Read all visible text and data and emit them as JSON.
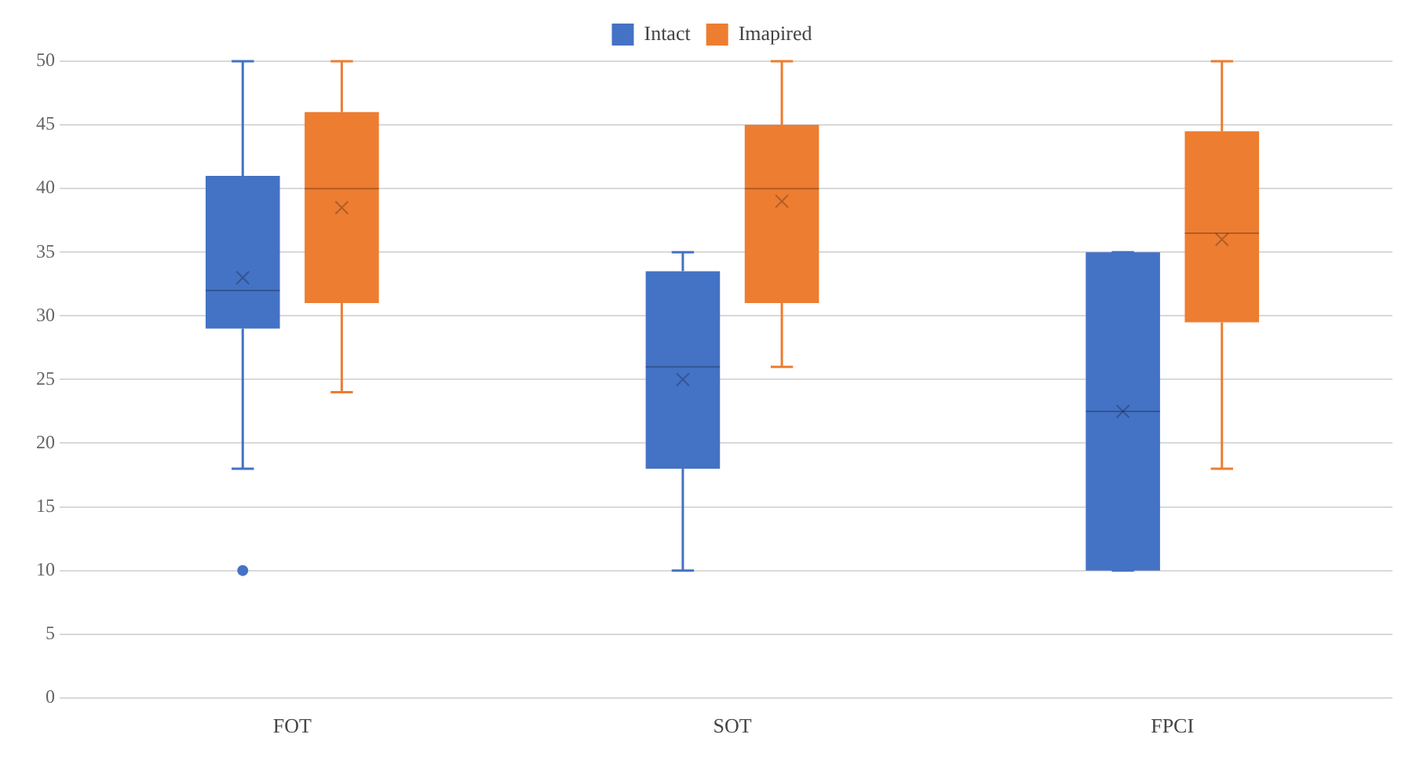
{
  "chart_data": {
    "type": "box",
    "categories": [
      "FOT",
      "SOT",
      "FPCI"
    ],
    "series": [
      {
        "name": "Intact",
        "color": "#4472c4",
        "boxes": [
          {
            "low": 18,
            "q1": 29,
            "median": 32,
            "q3": 41,
            "high": 50,
            "mean": 33,
            "outliers": [
              10
            ]
          },
          {
            "low": 10,
            "q1": 18,
            "median": 26,
            "q3": 33.5,
            "high": 35,
            "mean": 25
          },
          {
            "low": 10,
            "q1": 10,
            "median": 22.5,
            "q3": 35,
            "high": 35,
            "mean": 22.5
          }
        ]
      },
      {
        "name": "Imapired",
        "color": "#ed7d31",
        "boxes": [
          {
            "low": 24,
            "q1": 31,
            "median": 40,
            "q3": 46,
            "high": 50,
            "mean": 38.5
          },
          {
            "low": 26,
            "q1": 31,
            "median": 40,
            "q3": 45,
            "high": 50,
            "mean": 39
          },
          {
            "low": 18,
            "q1": 29.5,
            "median": 36.5,
            "q3": 44.5,
            "high": 50,
            "mean": 36
          }
        ]
      }
    ],
    "ylim": [
      0,
      50
    ],
    "yticks": [
      0,
      5,
      10,
      15,
      20,
      25,
      30,
      35,
      40,
      45,
      50
    ],
    "grid": "y",
    "legend": "top"
  }
}
